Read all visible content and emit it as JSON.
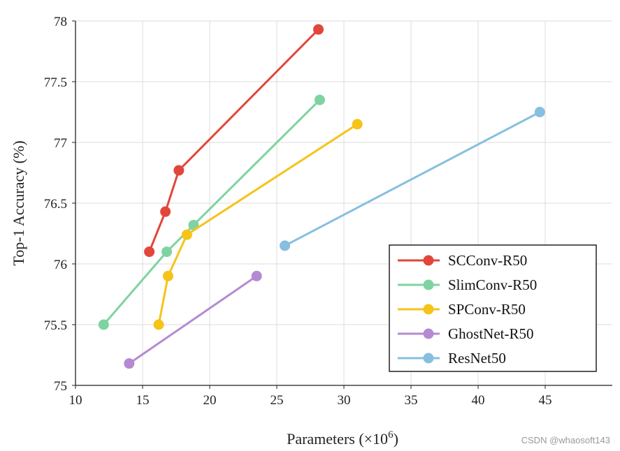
{
  "chart_data": {
    "type": "line",
    "title": "",
    "xlabel": "Parameters (×10",
    "xlabel_sup": "6",
    "xlabel_close": ")",
    "ylabel": "Top-1 Accuracy (%)",
    "xlim": [
      10,
      50
    ],
    "ylim": [
      75,
      78
    ],
    "xticks": [
      "10",
      "15",
      "20",
      "25",
      "30",
      "35",
      "40",
      "45"
    ],
    "yticks": [
      "75",
      "75.5",
      "76",
      "76.5",
      "77",
      "77.5",
      "78"
    ],
    "grid": true,
    "legend_position": "bottom-right",
    "series": [
      {
        "name": "SCConv-R50",
        "color": "#e2463a",
        "points": [
          [
            15.5,
            76.1
          ],
          [
            16.7,
            76.43
          ],
          [
            17.7,
            76.77
          ],
          [
            28.1,
            77.93
          ]
        ]
      },
      {
        "name": "SlimConv-R50",
        "color": "#7fd3a1",
        "points": [
          [
            12.1,
            75.5
          ],
          [
            16.8,
            76.1
          ],
          [
            18.8,
            76.32
          ],
          [
            28.2,
            77.35
          ]
        ]
      },
      {
        "name": "SPConv-R50",
        "color": "#f6c319",
        "points": [
          [
            16.2,
            75.5
          ],
          [
            16.9,
            75.9
          ],
          [
            18.3,
            76.24
          ],
          [
            31.0,
            77.15
          ]
        ]
      },
      {
        "name": "GhostNet-R50",
        "color": "#b58ad2",
        "points": [
          [
            14.0,
            75.18
          ],
          [
            23.5,
            75.9
          ]
        ]
      },
      {
        "name": "ResNet50",
        "color": "#86bfe0",
        "points": [
          [
            25.6,
            76.15
          ],
          [
            44.6,
            77.25
          ]
        ]
      }
    ]
  },
  "watermark": "CSDN @whaosoft143"
}
